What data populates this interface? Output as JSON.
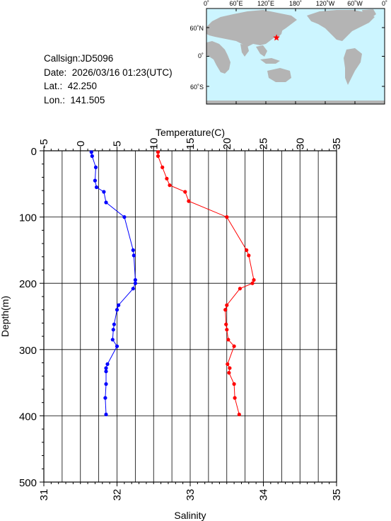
{
  "info": {
    "callsign": "Callsign:JD5096",
    "date": "Date:  2026/03/16 01:23(UTC)",
    "lat": "Lat.:  42.250",
    "lon": "Lon.:  141.505"
  },
  "map": {
    "top_labels": [
      "0˚",
      "60˚E",
      "120˚E",
      "180˚",
      "120˚W",
      "60˚W",
      "0˚"
    ],
    "left_labels": [
      "60˚N",
      "0˚",
      "60˚S"
    ],
    "ocean_color": "#ccf5ff",
    "land_color": "#b4b4b4",
    "marker_color": "#ff0000",
    "marker": {
      "lon": 141.505,
      "lat": 42.25
    }
  },
  "chart_data": {
    "type": "line",
    "title": "",
    "ylabel": "Depth(m)",
    "ylim": [
      0,
      500
    ],
    "y_inverted": true,
    "y_ticks": [
      0,
      100,
      200,
      300,
      400,
      500
    ],
    "grid": true,
    "temperature_axis": {
      "label": "Temperature(C)",
      "lim": [
        -5,
        35
      ],
      "ticks": [
        -5,
        0,
        5,
        10,
        15,
        20,
        25,
        30,
        35
      ],
      "position": "top"
    },
    "salinity_axis": {
      "label": "Salinity",
      "lim": [
        31,
        35
      ],
      "ticks": [
        31,
        32,
        33,
        34,
        35
      ],
      "position": "bottom"
    },
    "series": [
      {
        "name": "Temperature",
        "axis": "temperature",
        "color": "#ff0000",
        "points": [
          [
            10.6,
            2
          ],
          [
            10.6,
            8
          ],
          [
            11.2,
            25
          ],
          [
            11.8,
            42
          ],
          [
            12.2,
            52
          ],
          [
            14.3,
            62
          ],
          [
            14.8,
            76
          ],
          [
            20.0,
            100
          ],
          [
            22.7,
            150
          ],
          [
            23.0,
            158
          ],
          [
            23.7,
            195
          ],
          [
            23.5,
            200
          ],
          [
            21.8,
            208
          ],
          [
            20.0,
            233
          ],
          [
            19.8,
            240
          ],
          [
            19.9,
            262
          ],
          [
            20.0,
            270
          ],
          [
            20.2,
            285
          ],
          [
            21.0,
            295
          ],
          [
            20.1,
            322
          ],
          [
            20.4,
            328
          ],
          [
            20.3,
            335
          ],
          [
            21.0,
            352
          ],
          [
            21.1,
            373
          ],
          [
            21.7,
            398
          ]
        ]
      },
      {
        "name": "Salinity",
        "axis": "salinity",
        "color": "#0000ff",
        "points": [
          [
            31.65,
            2
          ],
          [
            31.66,
            8
          ],
          [
            31.71,
            25
          ],
          [
            31.7,
            45
          ],
          [
            31.72,
            55
          ],
          [
            31.82,
            62
          ],
          [
            31.85,
            78
          ],
          [
            32.1,
            100
          ],
          [
            32.22,
            150
          ],
          [
            32.23,
            158
          ],
          [
            32.25,
            195
          ],
          [
            32.25,
            200
          ],
          [
            32.22,
            208
          ],
          [
            32.02,
            233
          ],
          [
            32.0,
            240
          ],
          [
            31.96,
            262
          ],
          [
            31.95,
            270
          ],
          [
            31.94,
            285
          ],
          [
            32.0,
            295
          ],
          [
            31.87,
            322
          ],
          [
            31.85,
            328
          ],
          [
            31.85,
            333
          ],
          [
            31.85,
            352
          ],
          [
            31.84,
            373
          ],
          [
            31.85,
            398
          ]
        ]
      }
    ]
  }
}
